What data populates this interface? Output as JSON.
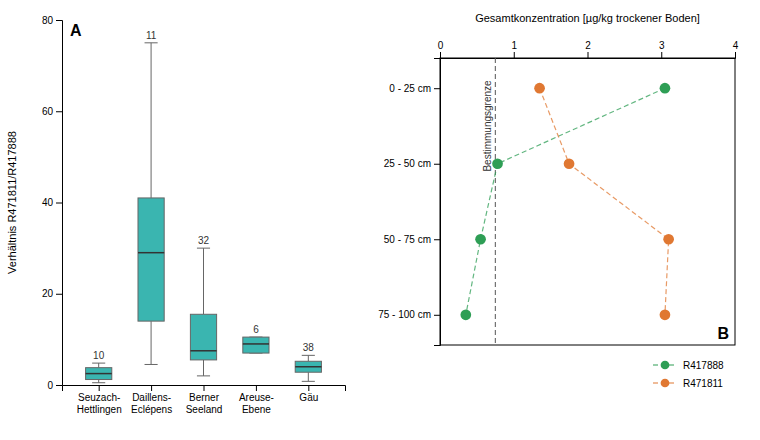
{
  "chart_data": [
    {
      "type": "box",
      "title": "A",
      "categories": [
        "Seuzach-\nHettlingen",
        "Daillens-\nEclépens",
        "Berner\nSeeland",
        "Areuse-\nEbene",
        "Gäu"
      ],
      "boxes": [
        {
          "q1": 1.2,
          "median": 2.5,
          "q3": 3.8,
          "whislo": 0.5,
          "whishi": 4.8
        },
        {
          "q1": 14.0,
          "median": 29.0,
          "q3": 41.0,
          "whislo": 4.5,
          "whishi": 75.0
        },
        {
          "q1": 5.5,
          "median": 7.5,
          "q3": 15.5,
          "whislo": 2.0,
          "whishi": 30.0
        },
        {
          "q1": 7.0,
          "median": 9.0,
          "q3": 10.5,
          "whislo": 7.0,
          "whishi": 10.5
        },
        {
          "q1": 2.8,
          "median": 4.0,
          "q3": 5.2,
          "whislo": 0.8,
          "whishi": 6.5
        }
      ],
      "n_labels": [
        "10",
        "11",
        "32",
        "6",
        "38"
      ],
      "ylabel": "Verhältnis R471811/R417888",
      "ylim": [
        0,
        80
      ],
      "yticks": [
        0,
        20,
        40,
        60,
        80
      ],
      "color": "#3ab5b0",
      "grid": false
    },
    {
      "type": "line",
      "title": "B",
      "categories": [
        "0 - 25 cm",
        "25 - 50 cm",
        "50 - 75 cm",
        "75 - 100 cm"
      ],
      "series": [
        {
          "name": "R417888",
          "color": "#2e9e55",
          "marker": "circle",
          "line_style": "dashed",
          "values": [
            3.05,
            0.78,
            0.55,
            0.35
          ]
        },
        {
          "name": "R471811",
          "color": "#e07832",
          "marker": "circle",
          "line_style": "dashed",
          "values": [
            1.35,
            1.75,
            3.1,
            3.05
          ]
        }
      ],
      "xlabel": "Gesamtkonzentration [µg/kg trockener Boden]",
      "xlim": [
        0,
        4
      ],
      "xticks": [
        0,
        1,
        2,
        3,
        4
      ],
      "annotations": [
        {
          "x": 0.75,
          "text": "Bestimmungsgrenze"
        }
      ],
      "legend": "lower right",
      "grid": false
    }
  ]
}
